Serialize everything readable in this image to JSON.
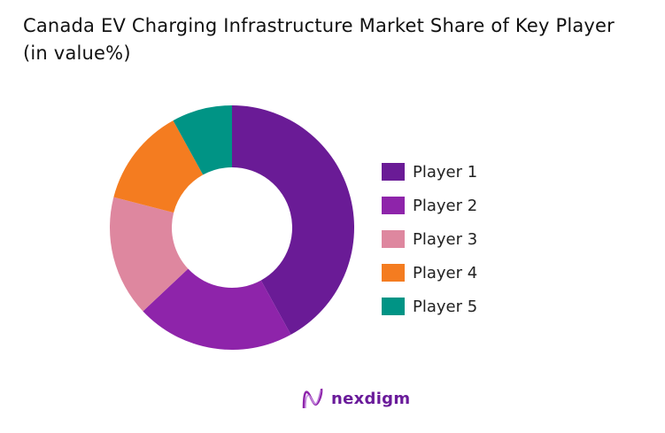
{
  "chart_data": {
    "type": "pie",
    "donut": true,
    "title": "Canada EV Charging Infrastructure Market Share of Key Player (in value%)",
    "categories": [
      "Player 1",
      "Player 2",
      "Player 3",
      "Player 4",
      "Player 5"
    ],
    "values": [
      42,
      21,
      16,
      13,
      8
    ],
    "colors": [
      "#6a1b96",
      "#8e24aa",
      "#de879f",
      "#f47c20",
      "#009485"
    ],
    "legend_position": "right"
  },
  "logo": {
    "text": "nexdigm"
  }
}
